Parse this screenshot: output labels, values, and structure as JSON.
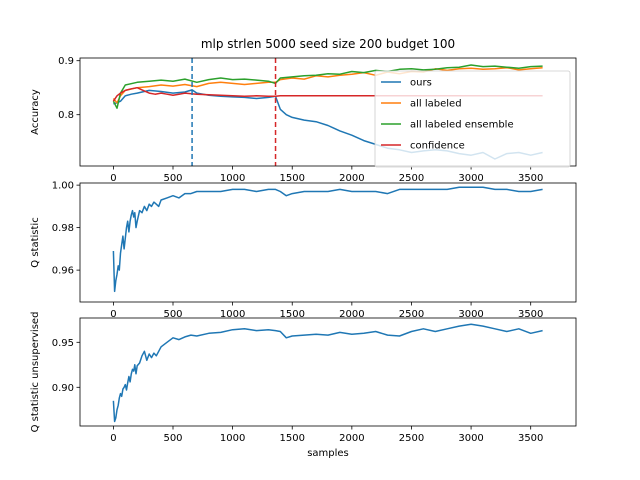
{
  "chart_data": [
    {
      "type": "line",
      "title": "mlp strlen 5000 seed size 200 budget 100",
      "xlabel": "",
      "ylabel": "Accuracy",
      "xlim": [
        -280,
        3880
      ],
      "ylim": [
        0.705,
        0.905
      ],
      "xticks": [
        0,
        500,
        1000,
        1500,
        2000,
        2500,
        3000,
        3500
      ],
      "yticks": [
        0.8,
        0.9
      ],
      "ytick_labels": [
        "0.8",
        "0.9"
      ],
      "legend_position": "upper-right",
      "vlines": [
        {
          "x": 660,
          "color": "#1f77b4",
          "style": "dashed"
        },
        {
          "x": 1360,
          "color": "#d62728",
          "style": "dashed"
        }
      ],
      "series": [
        {
          "name": "ours",
          "color": "#1f77b4",
          "x": [
            0,
            30,
            60,
            100,
            150,
            200,
            300,
            400,
            500,
            600,
            660,
            700,
            800,
            900,
            1000,
            1100,
            1200,
            1300,
            1360,
            1400,
            1450,
            1500,
            1600,
            1700,
            1800,
            1900,
            2000,
            2100,
            2200,
            2300,
            2400,
            2500,
            2600,
            2700,
            2800,
            2900,
            3000,
            3100,
            3200,
            3300,
            3400,
            3500,
            3600
          ],
          "y": [
            0.82,
            0.822,
            0.825,
            0.835,
            0.838,
            0.84,
            0.845,
            0.843,
            0.84,
            0.842,
            0.846,
            0.84,
            0.836,
            0.834,
            0.833,
            0.832,
            0.83,
            0.832,
            0.834,
            0.81,
            0.8,
            0.795,
            0.79,
            0.787,
            0.78,
            0.77,
            0.762,
            0.752,
            0.745,
            0.738,
            0.735,
            0.73,
            0.733,
            0.735,
            0.733,
            0.728,
            0.725,
            0.73,
            0.718,
            0.728,
            0.73,
            0.725,
            0.73
          ]
        },
        {
          "name": "all labeled",
          "color": "#ff7f0e",
          "x": [
            0,
            30,
            60,
            100,
            200,
            300,
            400,
            500,
            600,
            700,
            800,
            900,
            1000,
            1100,
            1200,
            1300,
            1360,
            1400,
            1500,
            1600,
            1700,
            1800,
            1900,
            2000,
            2100,
            2200,
            2300,
            2400,
            2500,
            2600,
            2700,
            2800,
            2900,
            3000,
            3100,
            3200,
            3300,
            3400,
            3500,
            3600
          ],
          "y": [
            0.83,
            0.822,
            0.835,
            0.845,
            0.85,
            0.852,
            0.855,
            0.853,
            0.856,
            0.852,
            0.858,
            0.86,
            0.858,
            0.856,
            0.858,
            0.86,
            0.86,
            0.865,
            0.868,
            0.866,
            0.872,
            0.87,
            0.873,
            0.875,
            0.878,
            0.873,
            0.879,
            0.876,
            0.88,
            0.879,
            0.885,
            0.882,
            0.885,
            0.886,
            0.884,
            0.885,
            0.887,
            0.883,
            0.885,
            0.887
          ]
        },
        {
          "name": "all labeled ensemble",
          "color": "#2ca02c",
          "x": [
            0,
            30,
            60,
            100,
            200,
            300,
            400,
            500,
            600,
            700,
            800,
            900,
            1000,
            1100,
            1200,
            1300,
            1360,
            1400,
            1500,
            1600,
            1700,
            1800,
            1900,
            2000,
            2100,
            2200,
            2300,
            2400,
            2500,
            2600,
            2700,
            2800,
            2900,
            3000,
            3100,
            3200,
            3300,
            3400,
            3500,
            3600
          ],
          "y": [
            0.825,
            0.812,
            0.84,
            0.855,
            0.86,
            0.862,
            0.864,
            0.862,
            0.866,
            0.86,
            0.865,
            0.868,
            0.865,
            0.866,
            0.864,
            0.862,
            0.858,
            0.868,
            0.87,
            0.872,
            0.873,
            0.876,
            0.875,
            0.88,
            0.878,
            0.882,
            0.88,
            0.884,
            0.885,
            0.883,
            0.884,
            0.887,
            0.888,
            0.892,
            0.889,
            0.89,
            0.888,
            0.886,
            0.889,
            0.89
          ]
        },
        {
          "name": "confidence",
          "color": "#d62728",
          "x": [
            0,
            30,
            60,
            100,
            150,
            200,
            250,
            300,
            350,
            400,
            450,
            500,
            550,
            600,
            700,
            800,
            900,
            1000,
            1100,
            1200,
            1300,
            1360,
            1400,
            3600
          ],
          "y": [
            0.825,
            0.835,
            0.84,
            0.845,
            0.848,
            0.85,
            0.845,
            0.84,
            0.838,
            0.84,
            0.838,
            0.836,
            0.838,
            0.84,
            0.838,
            0.837,
            0.836,
            0.835,
            0.834,
            0.835,
            0.834,
            0.834,
            0.835,
            0.835
          ]
        }
      ]
    },
    {
      "type": "line",
      "title": "",
      "xlabel": "",
      "ylabel": "Q statistic",
      "xlim": [
        -280,
        3880
      ],
      "ylim": [
        0.945,
        1.001
      ],
      "xticks": [
        0,
        500,
        1000,
        1500,
        2000,
        2500,
        3000,
        3500
      ],
      "yticks": [
        0.96,
        0.98,
        1.0
      ],
      "ytick_labels": [
        "0.96",
        "0.98",
        "1.00"
      ],
      "series": [
        {
          "name": "",
          "color": "#1f77b4",
          "x": [
            0,
            10,
            20,
            30,
            40,
            50,
            60,
            70,
            80,
            90,
            100,
            110,
            120,
            130,
            140,
            150,
            160,
            170,
            180,
            190,
            200,
            220,
            240,
            260,
            280,
            300,
            320,
            340,
            360,
            380,
            400,
            450,
            500,
            550,
            600,
            650,
            700,
            800,
            900,
            1000,
            1100,
            1200,
            1300,
            1360,
            1400,
            1450,
            1500,
            1600,
            1700,
            1800,
            1900,
            2000,
            2100,
            2200,
            2300,
            2400,
            2500,
            2600,
            2700,
            2800,
            2900,
            3000,
            3100,
            3200,
            3300,
            3400,
            3500,
            3600
          ],
          "y": [
            0.969,
            0.95,
            0.955,
            0.958,
            0.962,
            0.96,
            0.968,
            0.972,
            0.976,
            0.97,
            0.975,
            0.98,
            0.983,
            0.978,
            0.983,
            0.986,
            0.988,
            0.985,
            0.987,
            0.98,
            0.983,
            0.988,
            0.987,
            0.99,
            0.988,
            0.991,
            0.99,
            0.992,
            0.991,
            0.99,
            0.993,
            0.994,
            0.995,
            0.994,
            0.996,
            0.996,
            0.997,
            0.997,
            0.997,
            0.998,
            0.998,
            0.997,
            0.998,
            0.998,
            0.997,
            0.995,
            0.996,
            0.997,
            0.997,
            0.997,
            0.998,
            0.997,
            0.997,
            0.997,
            0.996,
            0.998,
            0.998,
            0.998,
            0.998,
            0.998,
            0.999,
            0.999,
            0.999,
            0.998,
            0.998,
            0.997,
            0.997,
            0.998
          ]
        }
      ]
    },
    {
      "type": "line",
      "title": "",
      "xlabel": "samples",
      "ylabel": "Q statistic unsupervised",
      "xlim": [
        -280,
        3880
      ],
      "ylim": [
        0.857,
        0.977
      ],
      "xticks": [
        0,
        500,
        1000,
        1500,
        2000,
        2500,
        3000,
        3500
      ],
      "yticks": [
        0.9,
        0.95
      ],
      "ytick_labels": [
        "0.90",
        "0.95"
      ],
      "series": [
        {
          "name": "",
          "color": "#1f77b4",
          "x": [
            0,
            10,
            20,
            30,
            40,
            50,
            60,
            70,
            80,
            90,
            100,
            110,
            120,
            130,
            140,
            150,
            160,
            170,
            180,
            190,
            200,
            220,
            240,
            260,
            280,
            300,
            320,
            340,
            360,
            380,
            400,
            450,
            500,
            550,
            600,
            650,
            700,
            800,
            900,
            1000,
            1100,
            1200,
            1300,
            1360,
            1400,
            1450,
            1500,
            1600,
            1700,
            1800,
            1900,
            2000,
            2100,
            2200,
            2300,
            2400,
            2500,
            2600,
            2700,
            2800,
            2900,
            3000,
            3100,
            3200,
            3300,
            3400,
            3500,
            3600
          ],
          "y": [
            0.885,
            0.862,
            0.866,
            0.875,
            0.88,
            0.888,
            0.893,
            0.89,
            0.898,
            0.9,
            0.903,
            0.897,
            0.905,
            0.912,
            0.906,
            0.915,
            0.92,
            0.918,
            0.925,
            0.915,
            0.924,
            0.927,
            0.935,
            0.94,
            0.93,
            0.937,
            0.933,
            0.938,
            0.935,
            0.94,
            0.945,
            0.95,
            0.955,
            0.953,
            0.956,
            0.958,
            0.957,
            0.96,
            0.961,
            0.964,
            0.965,
            0.963,
            0.964,
            0.963,
            0.962,
            0.955,
            0.957,
            0.958,
            0.959,
            0.958,
            0.961,
            0.959,
            0.96,
            0.962,
            0.958,
            0.957,
            0.962,
            0.965,
            0.962,
            0.965,
            0.968,
            0.97,
            0.968,
            0.965,
            0.962,
            0.965,
            0.96,
            0.963
          ]
        }
      ]
    }
  ]
}
